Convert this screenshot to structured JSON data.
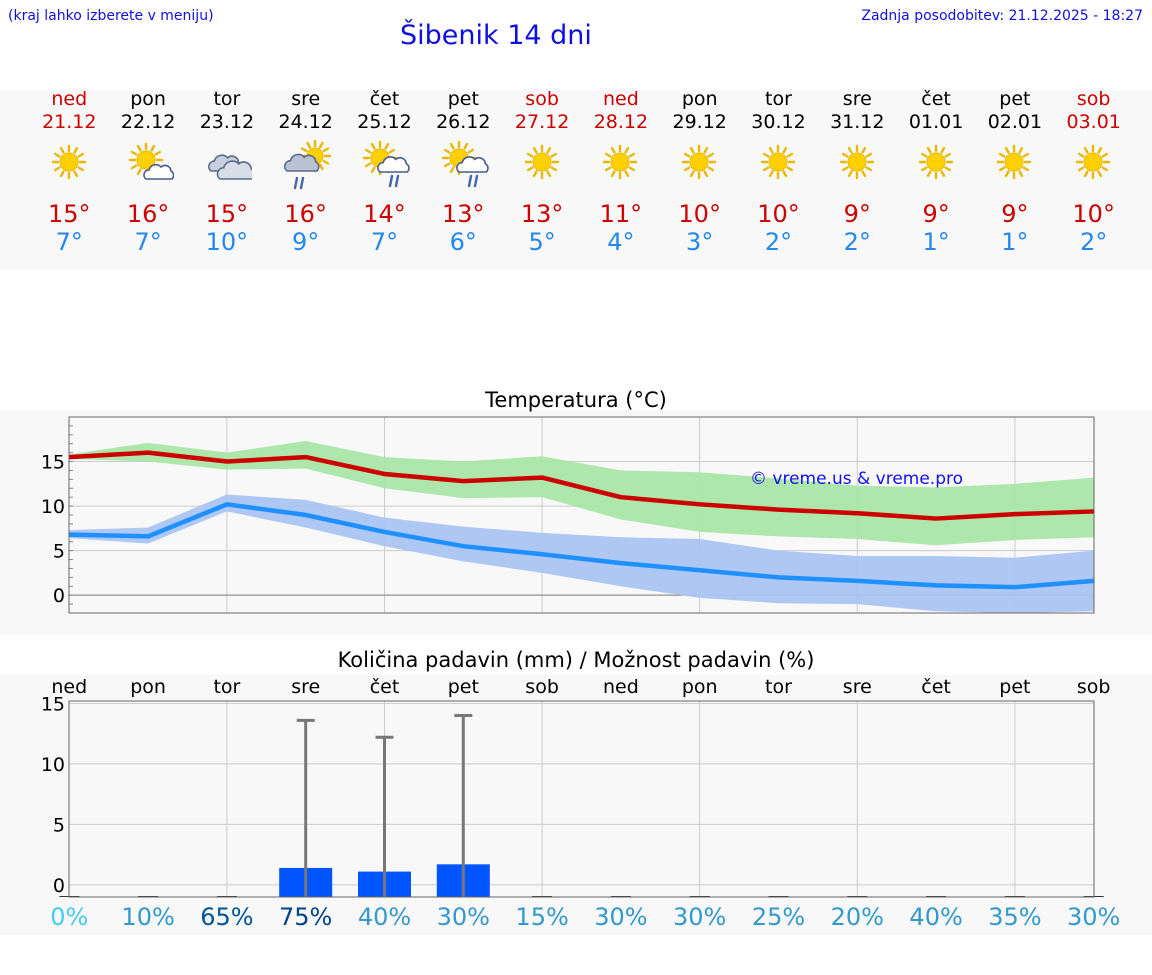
{
  "header": {
    "menu_hint": "(kraj lahko izberete v meniju)",
    "title": "Šibenik 14 dni",
    "last_update": "Zadnja posodobitev: 21.12.2025 - 18:27"
  },
  "colors": {
    "weekend": "#cc0000",
    "weekday": "#000000",
    "tmax": "#cc0000",
    "tmin": "#2288ee",
    "tmax_band": "#aae6a6",
    "tmin_band": "#aac4f2",
    "precip_bar": "#0055ff",
    "error_bar": "#777777"
  },
  "days": [
    {
      "name": "ned",
      "date": "21.12",
      "weekend": true,
      "icon": "sun-icon",
      "tmax": "15°",
      "tmin": "7°"
    },
    {
      "name": "pon",
      "date": "22.12",
      "weekend": false,
      "icon": "sun-cloud-icon",
      "tmax": "16°",
      "tmin": "7°"
    },
    {
      "name": "tor",
      "date": "23.12",
      "weekend": false,
      "icon": "cloudy-icon",
      "tmax": "15°",
      "tmin": "10°"
    },
    {
      "name": "sre",
      "date": "24.12",
      "weekend": false,
      "icon": "sun-rain-icon",
      "tmax": "16°",
      "tmin": "9°"
    },
    {
      "name": "čet",
      "date": "25.12",
      "weekend": false,
      "icon": "sun-cloud-rain-icon",
      "tmax": "14°",
      "tmin": "7°"
    },
    {
      "name": "pet",
      "date": "26.12",
      "weekend": false,
      "icon": "sun-cloud-rain-icon",
      "tmax": "13°",
      "tmin": "6°"
    },
    {
      "name": "sob",
      "date": "27.12",
      "weekend": true,
      "icon": "sun-icon",
      "tmax": "13°",
      "tmin": "5°"
    },
    {
      "name": "ned",
      "date": "28.12",
      "weekend": true,
      "icon": "sun-icon",
      "tmax": "11°",
      "tmin": "4°"
    },
    {
      "name": "pon",
      "date": "29.12",
      "weekend": false,
      "icon": "sun-icon",
      "tmax": "10°",
      "tmin": "3°"
    },
    {
      "name": "tor",
      "date": "30.12",
      "weekend": false,
      "icon": "sun-icon",
      "tmax": "10°",
      "tmin": "2°"
    },
    {
      "name": "sre",
      "date": "31.12",
      "weekend": false,
      "icon": "sun-icon",
      "tmax": "9°",
      "tmin": "2°"
    },
    {
      "name": "čet",
      "date": "01.01",
      "weekend": false,
      "icon": "sun-icon",
      "tmax": "9°",
      "tmin": "1°"
    },
    {
      "name": "pet",
      "date": "02.01",
      "weekend": false,
      "icon": "sun-icon",
      "tmax": "9°",
      "tmin": "1°"
    },
    {
      "name": "sob",
      "date": "03.01",
      "weekend": true,
      "icon": "sun-icon",
      "tmax": "10°",
      "tmin": "2°"
    }
  ],
  "chart_data": [
    {
      "type": "line",
      "title": "Temperatura (°C)",
      "watermark": "© vreme.us & vreme.pro",
      "x": [
        0,
        1,
        2,
        3,
        4,
        5,
        6,
        7,
        8,
        9,
        10,
        11,
        12,
        13
      ],
      "ylim": [
        -2,
        20
      ],
      "yticks": [
        0,
        5,
        10,
        15
      ],
      "series": [
        {
          "name": "Tmax",
          "values": [
            15.5,
            16.0,
            15.0,
            15.5,
            13.6,
            12.8,
            13.2,
            11.0,
            10.2,
            9.6,
            9.2,
            8.6,
            9.1,
            9.4
          ]
        },
        {
          "name": "Tmin",
          "values": [
            6.8,
            6.6,
            10.2,
            9.0,
            7.1,
            5.5,
            4.6,
            3.6,
            2.8,
            2.0,
            1.6,
            1.1,
            0.9,
            1.6
          ]
        }
      ],
      "bands": [
        {
          "name": "Tmax range",
          "low": [
            15.3,
            15.0,
            14.1,
            14.2,
            12.0,
            10.9,
            11.0,
            8.5,
            7.1,
            6.6,
            6.3,
            5.6,
            6.2,
            6.5
          ],
          "high": [
            15.8,
            17.1,
            16.0,
            17.3,
            15.5,
            15.0,
            15.6,
            14.0,
            13.8,
            13.1,
            12.3,
            12.1,
            12.5,
            13.2
          ]
        },
        {
          "name": "Tmin range",
          "low": [
            6.4,
            5.8,
            9.4,
            7.6,
            5.5,
            3.8,
            2.5,
            1.0,
            -0.3,
            -0.9,
            -1.0,
            -1.8,
            -2.0,
            -1.8
          ],
          "high": [
            7.3,
            7.6,
            11.3,
            10.7,
            8.7,
            7.7,
            7.0,
            6.5,
            6.3,
            5.0,
            4.4,
            4.4,
            4.2,
            5.0
          ]
        }
      ]
    },
    {
      "type": "bar",
      "title": "Količina padavin (mm) / Možnost padavin (%)",
      "categories": [
        "ned",
        "pon",
        "tor",
        "sre",
        "čet",
        "pet",
        "sob",
        "ned",
        "pon",
        "tor",
        "sre",
        "čet",
        "pet",
        "sob"
      ],
      "ylim": [
        -1,
        15.2
      ],
      "yticks": [
        0,
        5,
        10,
        15
      ],
      "values": [
        0,
        0,
        0,
        1.4,
        1.1,
        1.7,
        0,
        0,
        0,
        0,
        0,
        0,
        0,
        0
      ],
      "max_values": [
        0,
        0,
        0,
        13.6,
        12.2,
        14.0,
        0,
        0,
        0,
        0,
        0,
        0,
        0,
        0
      ],
      "probability": [
        "0%",
        "10%",
        "65%",
        "75%",
        "40%",
        "30%",
        "15%",
        "30%",
        "30%",
        "25%",
        "20%",
        "40%",
        "35%",
        "30%"
      ],
      "probability_colors": [
        "#44ccee",
        "#3399cc",
        "#005599",
        "#004488",
        "#3399cc",
        "#3399cc",
        "#3399cc",
        "#3399cc",
        "#3399cc",
        "#3399cc",
        "#3399cc",
        "#3399cc",
        "#3399cc",
        "#3399cc"
      ]
    }
  ]
}
